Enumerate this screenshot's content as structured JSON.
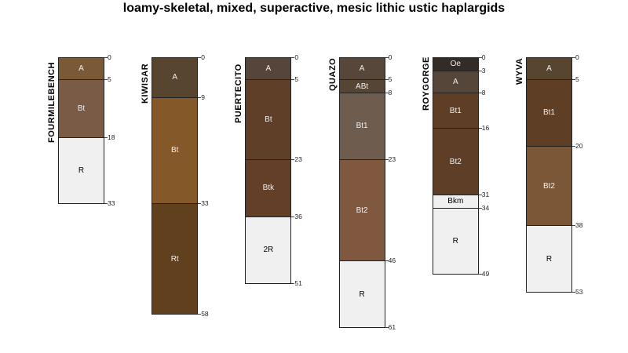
{
  "title": "loamy-skeletal, mixed, superactive, mesic lithic ustic haplargids",
  "profiles": [
    {
      "name": "FOURMILEBENCH",
      "horizons": [
        {
          "name": "A",
          "top": 0,
          "bottom": 5,
          "color": "#7a5a36"
        },
        {
          "name": "Bt",
          "top": 5,
          "bottom": 18,
          "color": "#7a5c46"
        },
        {
          "name": "R",
          "top": 18,
          "bottom": 33,
          "color": "#f0f0f0"
        }
      ]
    },
    {
      "name": "KIWISAR",
      "horizons": [
        {
          "name": "A",
          "top": 0,
          "bottom": 9,
          "color": "#574530"
        },
        {
          "name": "Bt",
          "top": 9,
          "bottom": 33,
          "color": "#855829"
        },
        {
          "name": "Rt",
          "top": 33,
          "bottom": 58,
          "color": "#61401d"
        }
      ]
    },
    {
      "name": "PUERTECITO",
      "horizons": [
        {
          "name": "A",
          "top": 0,
          "bottom": 5,
          "color": "#56453a"
        },
        {
          "name": "Bt",
          "top": 5,
          "bottom": 23,
          "color": "#5f3f27"
        },
        {
          "name": "Btk",
          "top": 23,
          "bottom": 36,
          "color": "#633f29"
        },
        {
          "name": "2R",
          "top": 36,
          "bottom": 51,
          "color": "#f0f0f0"
        }
      ]
    },
    {
      "name": "QUAZO",
      "horizons": [
        {
          "name": "A",
          "top": 0,
          "bottom": 5,
          "color": "#56473a"
        },
        {
          "name": "ABt",
          "top": 5,
          "bottom": 8,
          "color": "#564535"
        },
        {
          "name": "Bt1",
          "top": 8,
          "bottom": 23,
          "color": "#6e5c4f"
        },
        {
          "name": "Bt2",
          "top": 23,
          "bottom": 46,
          "color": "#805840"
        },
        {
          "name": "R",
          "top": 46,
          "bottom": 61,
          "color": "#f0f0f0"
        }
      ]
    },
    {
      "name": "ROYGORGE",
      "horizons": [
        {
          "name": "Oe",
          "top": 0,
          "bottom": 3,
          "color": "#332b26"
        },
        {
          "name": "A",
          "top": 3,
          "bottom": 8,
          "color": "#554639"
        },
        {
          "name": "Bt1",
          "top": 8,
          "bottom": 16,
          "color": "#5e3e26"
        },
        {
          "name": "Bt2",
          "top": 16,
          "bottom": 31,
          "color": "#5e3e27"
        },
        {
          "name": "Bkm",
          "top": 31,
          "bottom": 34,
          "color": "#f0f0f0"
        },
        {
          "name": "R",
          "top": 34,
          "bottom": 49,
          "color": "#f0f0f0"
        }
      ]
    },
    {
      "name": "WYVA",
      "horizons": [
        {
          "name": "A",
          "top": 0,
          "bottom": 5,
          "color": "#574530"
        },
        {
          "name": "Bt1",
          "top": 5,
          "bottom": 20,
          "color": "#5e3f26"
        },
        {
          "name": "Bt2",
          "top": 20,
          "bottom": 38,
          "color": "#7b5738"
        },
        {
          "name": "R",
          "top": 38,
          "bottom": 53,
          "color": "#f0f0f0"
        }
      ]
    }
  ]
}
